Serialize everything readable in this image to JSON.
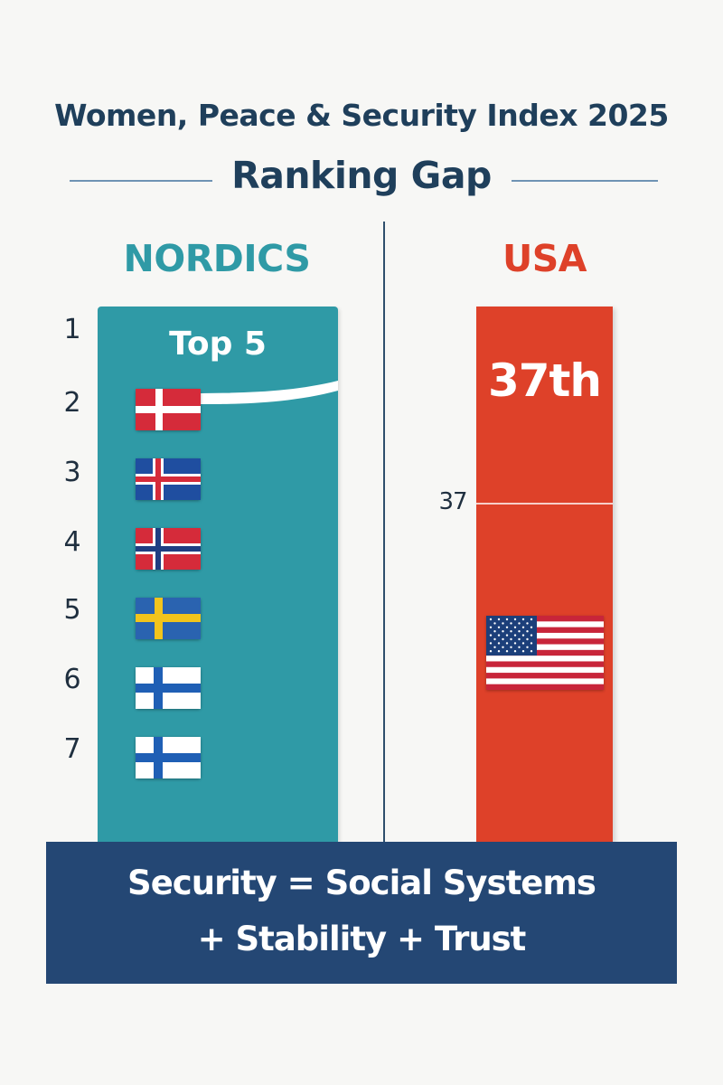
{
  "header": {
    "title": "Women, Peace & Security Index 2025",
    "subtitle": "Ranking Gap"
  },
  "nordics": {
    "heading": "NORDICS",
    "color": "#2f9aa6",
    "badge": "Top 5",
    "ranks": [
      "1",
      "2",
      "3",
      "4",
      "5",
      "6",
      "7"
    ],
    "flags": [
      {
        "icon": "denmark-flag-icon"
      },
      {
        "icon": "iceland-flag-icon"
      },
      {
        "icon": "norway-flag-icon"
      },
      {
        "icon": "sweden-flag-icon"
      },
      {
        "icon": "finland-flag-icon"
      },
      {
        "icon": "finland-flag-icon"
      }
    ]
  },
  "usa": {
    "heading": "USA",
    "color": "#de4129",
    "rank_label": "37th",
    "marker_label": "37",
    "flag_icon": "usa-flag-icon"
  },
  "banner": {
    "line1": "Security = Social Systems",
    "line2": "+ Stability + Trust",
    "color": "#244774"
  }
}
